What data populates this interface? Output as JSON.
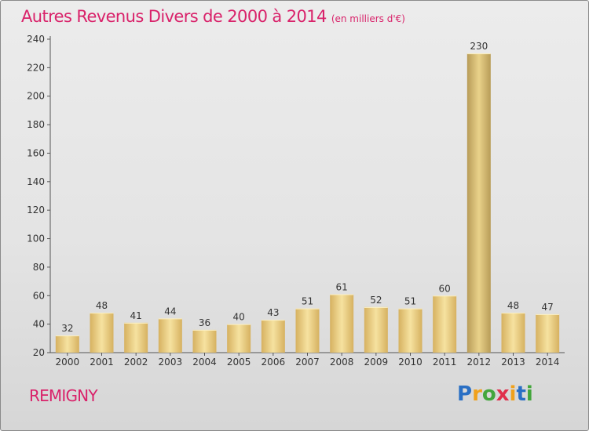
{
  "title": "Autres Revenus Divers de 2000 à 2014",
  "subtitle": "(en milliers d'€)",
  "city": "REMIGNY",
  "logo": {
    "letters": [
      "P",
      "r",
      "o",
      "x",
      "i",
      "t",
      "i"
    ],
    "colors": [
      "#2a6fc4",
      "#f0a11c",
      "#43a63c",
      "#e0304c",
      "#f0a11c",
      "#2a6fc4",
      "#43a63c"
    ]
  },
  "colors": {
    "accent": "#d9226a",
    "bar_light": "#f6e2a0",
    "bar_dark": "#d6b160",
    "bar_highlight_light": "#e9d28a",
    "bar_highlight_dark": "#b89c58"
  },
  "chart_data": {
    "type": "bar",
    "title": "Autres Revenus Divers de 2000 à 2014",
    "subtitle": "(en milliers d'€)",
    "categories": [
      "2000",
      "2001",
      "2002",
      "2003",
      "2004",
      "2005",
      "2006",
      "2007",
      "2008",
      "2009",
      "2010",
      "2011",
      "2012",
      "2013",
      "2014"
    ],
    "values": [
      32,
      48,
      41,
      44,
      36,
      40,
      43,
      51,
      61,
      52,
      51,
      60,
      230,
      48,
      47
    ],
    "ylim": [
      20,
      240
    ],
    "yticks": [
      20,
      40,
      60,
      80,
      100,
      120,
      140,
      160,
      180,
      200,
      220,
      240
    ],
    "grid": false,
    "highlight_index": 12
  }
}
